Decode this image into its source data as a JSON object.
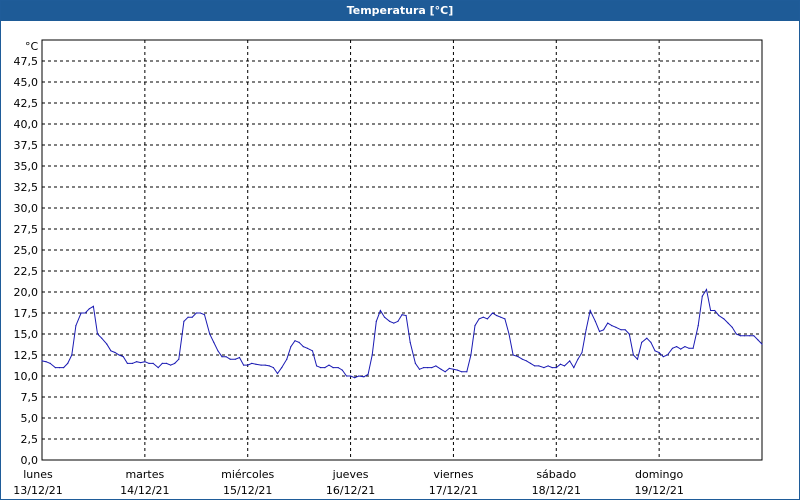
{
  "window": {
    "title": "Temperatura [°C]"
  },
  "colors": {
    "titlebar": "#1e5b97",
    "series": "#1a1ab3",
    "grid": "#000000"
  },
  "chart_data": {
    "type": "line",
    "title": "Temperatura [°C]",
    "ylabel": "°C",
    "xlabel": "",
    "ylim": [
      0,
      50
    ],
    "xlim": [
      0,
      7
    ],
    "grid": true,
    "y_ticks": [
      "0,0",
      "2,5",
      "5,0",
      "7,5",
      "10,0",
      "12,5",
      "15,0",
      "17,5",
      "20,0",
      "22,5",
      "25,0",
      "27,5",
      "30,0",
      "32,5",
      "35,0",
      "37,5",
      "40,0",
      "42,5",
      "45,0",
      "47,5"
    ],
    "x_ticks": [
      {
        "day": "lunes",
        "date": "13/12/21"
      },
      {
        "day": "martes",
        "date": "14/12/21"
      },
      {
        "day": "miércoles",
        "date": "15/12/21"
      },
      {
        "day": "jueves",
        "date": "16/12/21"
      },
      {
        "day": "viernes",
        "date": "17/12/21"
      },
      {
        "day": "sábado",
        "date": "18/12/21"
      },
      {
        "day": "domingo",
        "date": "19/12/21"
      }
    ],
    "series": [
      {
        "name": "",
        "color": "#1a1ab3",
        "points": [
          [
            0.0,
            11.8
          ],
          [
            0.04,
            11.7
          ],
          [
            0.08,
            11.5
          ],
          [
            0.13,
            11.0
          ],
          [
            0.17,
            11.0
          ],
          [
            0.21,
            11.0
          ],
          [
            0.25,
            11.5
          ],
          [
            0.29,
            12.5
          ],
          [
            0.33,
            16.0
          ],
          [
            0.38,
            17.5
          ],
          [
            0.42,
            17.5
          ],
          [
            0.46,
            18.0
          ],
          [
            0.5,
            18.3
          ],
          [
            0.54,
            15.0
          ],
          [
            0.58,
            14.5
          ],
          [
            0.63,
            13.8
          ],
          [
            0.67,
            13.0
          ],
          [
            0.71,
            12.8
          ],
          [
            0.75,
            12.5
          ],
          [
            0.79,
            12.3
          ],
          [
            0.83,
            11.5
          ],
          [
            0.88,
            11.5
          ],
          [
            0.92,
            11.7
          ],
          [
            0.96,
            11.6
          ],
          [
            1.0,
            11.7
          ],
          [
            1.04,
            11.5
          ],
          [
            1.08,
            11.5
          ],
          [
            1.13,
            11.0
          ],
          [
            1.17,
            11.5
          ],
          [
            1.21,
            11.5
          ],
          [
            1.25,
            11.3
          ],
          [
            1.29,
            11.5
          ],
          [
            1.33,
            12.0
          ],
          [
            1.38,
            16.5
          ],
          [
            1.42,
            17.0
          ],
          [
            1.46,
            17.0
          ],
          [
            1.5,
            17.5
          ],
          [
            1.54,
            17.5
          ],
          [
            1.58,
            17.3
          ],
          [
            1.63,
            15.0
          ],
          [
            1.67,
            14.0
          ],
          [
            1.71,
            13.0
          ],
          [
            1.75,
            12.3
          ],
          [
            1.79,
            12.3
          ],
          [
            1.83,
            12.0
          ],
          [
            1.88,
            12.0
          ],
          [
            1.92,
            12.2
          ],
          [
            1.96,
            11.3
          ],
          [
            2.0,
            11.3
          ],
          [
            2.04,
            11.5
          ],
          [
            2.08,
            11.4
          ],
          [
            2.13,
            11.3
          ],
          [
            2.17,
            11.3
          ],
          [
            2.21,
            11.2
          ],
          [
            2.25,
            11.0
          ],
          [
            2.29,
            10.3
          ],
          [
            2.33,
            11.0
          ],
          [
            2.38,
            12.0
          ],
          [
            2.42,
            13.5
          ],
          [
            2.46,
            14.2
          ],
          [
            2.5,
            14.0
          ],
          [
            2.54,
            13.5
          ],
          [
            2.58,
            13.3
          ],
          [
            2.63,
            13.0
          ],
          [
            2.67,
            11.2
          ],
          [
            2.71,
            11.0
          ],
          [
            2.75,
            11.0
          ],
          [
            2.79,
            11.3
          ],
          [
            2.83,
            11.0
          ],
          [
            2.88,
            11.0
          ],
          [
            2.92,
            10.7
          ],
          [
            2.96,
            10.0
          ],
          [
            3.0,
            10.0
          ],
          [
            3.04,
            9.8
          ],
          [
            3.08,
            10.0
          ],
          [
            3.13,
            9.9
          ],
          [
            3.17,
            10.2
          ],
          [
            3.21,
            12.5
          ],
          [
            3.25,
            16.5
          ],
          [
            3.29,
            17.8
          ],
          [
            3.33,
            17.0
          ],
          [
            3.38,
            16.5
          ],
          [
            3.42,
            16.3
          ],
          [
            3.46,
            16.5
          ],
          [
            3.5,
            17.3
          ],
          [
            3.54,
            17.2
          ],
          [
            3.58,
            14.0
          ],
          [
            3.63,
            11.5
          ],
          [
            3.67,
            10.8
          ],
          [
            3.71,
            11.0
          ],
          [
            3.75,
            11.0
          ],
          [
            3.79,
            11.0
          ],
          [
            3.83,
            11.2
          ],
          [
            3.88,
            10.8
          ],
          [
            3.92,
            10.5
          ],
          [
            3.96,
            10.9
          ],
          [
            4.0,
            10.8
          ],
          [
            4.04,
            10.7
          ],
          [
            4.08,
            10.5
          ],
          [
            4.13,
            10.5
          ],
          [
            4.17,
            12.5
          ],
          [
            4.21,
            16.0
          ],
          [
            4.25,
            16.8
          ],
          [
            4.29,
            17.0
          ],
          [
            4.33,
            16.8
          ],
          [
            4.38,
            17.5
          ],
          [
            4.42,
            17.2
          ],
          [
            4.46,
            17.0
          ],
          [
            4.5,
            16.8
          ],
          [
            4.54,
            15.0
          ],
          [
            4.58,
            12.5
          ],
          [
            4.63,
            12.3
          ],
          [
            4.67,
            12.0
          ],
          [
            4.71,
            11.8
          ],
          [
            4.75,
            11.5
          ],
          [
            4.79,
            11.2
          ],
          [
            4.83,
            11.2
          ],
          [
            4.88,
            11.0
          ],
          [
            4.92,
            11.2
          ],
          [
            4.96,
            11.0
          ],
          [
            5.0,
            11.0
          ],
          [
            5.04,
            11.4
          ],
          [
            5.08,
            11.2
          ],
          [
            5.13,
            11.8
          ],
          [
            5.17,
            11.0
          ],
          [
            5.21,
            12.0
          ],
          [
            5.25,
            12.8
          ],
          [
            5.29,
            15.5
          ],
          [
            5.33,
            17.8
          ],
          [
            5.38,
            16.5
          ],
          [
            5.42,
            15.3
          ],
          [
            5.46,
            15.5
          ],
          [
            5.5,
            16.3
          ],
          [
            5.54,
            16.0
          ],
          [
            5.58,
            15.8
          ],
          [
            5.63,
            15.5
          ],
          [
            5.67,
            15.5
          ],
          [
            5.71,
            15.0
          ],
          [
            5.75,
            12.5
          ],
          [
            5.79,
            12.0
          ],
          [
            5.83,
            14.0
          ],
          [
            5.88,
            14.5
          ],
          [
            5.92,
            14.0
          ],
          [
            5.96,
            13.0
          ],
          [
            6.0,
            12.8
          ],
          [
            6.04,
            12.3
          ],
          [
            6.08,
            12.5
          ],
          [
            6.13,
            13.3
          ],
          [
            6.17,
            13.5
          ],
          [
            6.21,
            13.2
          ],
          [
            6.25,
            13.5
          ],
          [
            6.29,
            13.3
          ],
          [
            6.33,
            13.3
          ],
          [
            6.38,
            16.0
          ],
          [
            6.42,
            19.5
          ],
          [
            6.46,
            20.3
          ],
          [
            6.5,
            17.8
          ],
          [
            6.54,
            17.8
          ],
          [
            6.58,
            17.2
          ],
          [
            6.63,
            16.8
          ],
          [
            6.67,
            16.3
          ],
          [
            6.71,
            15.8
          ],
          [
            6.75,
            15.0
          ],
          [
            6.79,
            14.8
          ],
          [
            6.83,
            14.8
          ],
          [
            6.88,
            14.8
          ],
          [
            6.92,
            14.8
          ],
          [
            6.96,
            14.3
          ],
          [
            7.0,
            13.8
          ]
        ]
      }
    ]
  }
}
